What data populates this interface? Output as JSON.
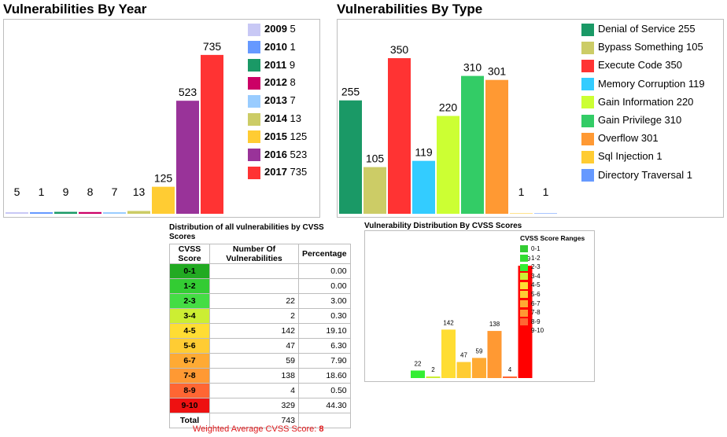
{
  "charts": {
    "by_year": {
      "title": "Vulnerabilities By Year",
      "chart_data": {
        "type": "bar",
        "categories": [
          "2009",
          "2010",
          "2011",
          "2012",
          "2013",
          "2014",
          "2015",
          "2016",
          "2017"
        ],
        "values": [
          5,
          1,
          9,
          8,
          7,
          13,
          125,
          523,
          735
        ],
        "colors": [
          "#c8c8f5",
          "#6699ff",
          "#1a9966",
          "#cc0066",
          "#99ccff",
          "#cccc66",
          "#ffcc33",
          "#993399",
          "#ff3333"
        ],
        "ylim": [
          0,
          800
        ]
      }
    },
    "by_type": {
      "title": "Vulnerabilities By Type",
      "chart_data": {
        "type": "bar",
        "categories": [
          "Denial of Service",
          "Bypass Something",
          "Execute Code",
          "Memory Corruption",
          "Gain Information",
          "Gain Privilege",
          "Overflow",
          "Sql Injection",
          "Directory Traversal"
        ],
        "values": [
          255,
          105,
          350,
          119,
          220,
          310,
          301,
          1,
          1
        ],
        "colors": [
          "#1a9966",
          "#cccc66",
          "#ff3333",
          "#33ccff",
          "#ccff33",
          "#33cc66",
          "#ff9933",
          "#ffcc33",
          "#6699ff"
        ],
        "ylim": [
          0,
          380
        ]
      }
    },
    "cvss_distribution": {
      "title": "Vulnerability Distribution By CVSS Scores",
      "legend_title": "CVSS Score Ranges",
      "chart_data": {
        "type": "bar",
        "categories": [
          "0-1",
          "1-2",
          "2-3",
          "3-4",
          "4-5",
          "5-6",
          "6-7",
          "7-8",
          "8-9",
          "9-10"
        ],
        "values": [
          0,
          0,
          22,
          2,
          142,
          47,
          59,
          138,
          4,
          329
        ],
        "colors": [
          "#33cc33",
          "#33dd33",
          "#33ee33",
          "#ccee33",
          "#ffdd33",
          "#ffcc33",
          "#ffaa33",
          "#ff9933",
          "#ff6633",
          "#ff0000"
        ],
        "ylim": [
          0,
          350
        ]
      }
    }
  },
  "table": {
    "title": "Distribution of all vulnerabilities by CVSS Scores",
    "headers": [
      "CVSS Score",
      "Number Of Vulnerabilities",
      "Percentage"
    ],
    "rows": [
      {
        "score": "0-1",
        "count": "",
        "pct": "0.00",
        "color": "#22aa22"
      },
      {
        "score": "1-2",
        "count": "",
        "pct": "0.00",
        "color": "#33cc33"
      },
      {
        "score": "2-3",
        "count": "22",
        "pct": "3.00",
        "color": "#44dd44"
      },
      {
        "score": "3-4",
        "count": "2",
        "pct": "0.30",
        "color": "#ccee33"
      },
      {
        "score": "4-5",
        "count": "142",
        "pct": "19.10",
        "color": "#ffdd33"
      },
      {
        "score": "5-6",
        "count": "47",
        "pct": "6.30",
        "color": "#ffcc33"
      },
      {
        "score": "6-7",
        "count": "59",
        "pct": "7.90",
        "color": "#ffaa33"
      },
      {
        "score": "7-8",
        "count": "138",
        "pct": "18.60",
        "color": "#ff9933"
      },
      {
        "score": "8-9",
        "count": "4",
        "pct": "0.50",
        "color": "#ff6633"
      },
      {
        "score": "9-10",
        "count": "329",
        "pct": "44.30",
        "color": "#ee1111"
      }
    ],
    "total_label": "Total",
    "total_count": "743"
  },
  "weighted_label": "Weighted Average CVSS Score: ",
  "weighted_value": "8"
}
